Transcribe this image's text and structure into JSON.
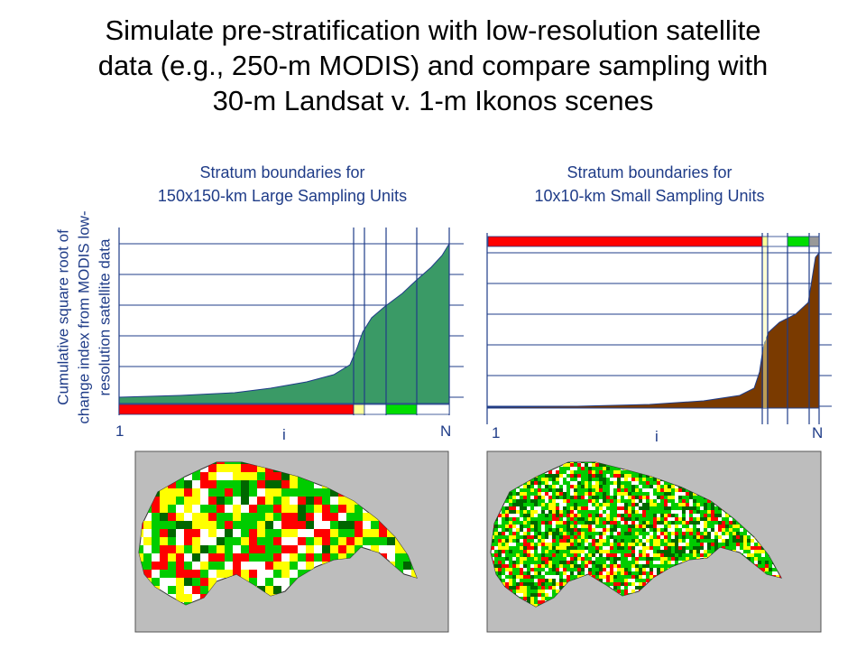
{
  "title_lines": [
    "Simulate pre-stratification with low-resolution satellite",
    "data (e.g., 250-m MODIS) and compare sampling with",
    "30-m Landsat  v. 1-m Ikonos scenes"
  ],
  "y_axis_label_lines": [
    "Cumulative square root of",
    "change index from MODIS low-",
    "resolution satellite data"
  ],
  "left_panel": {
    "caption_lines": [
      "Stratum boundaries for",
      "150x150-km Large Sampling Units"
    ],
    "x_start": "1",
    "x_mid": "i",
    "x_end": "N",
    "curve_color": "#3a9a66",
    "strata_colors": [
      "#ff0000",
      "#ffff99",
      "#ffffff",
      "#00dd00",
      "#ffffff"
    ]
  },
  "right_panel": {
    "caption_lines": [
      "Stratum boundaries for",
      "10x10-km Small Sampling Units"
    ],
    "x_start": "1",
    "x_mid": "i",
    "x_end": "N",
    "curve_color": "#7a3a00",
    "strata_colors": [
      "#ff0000",
      "#ffff99",
      "#ffffff",
      "#00dd00",
      "#999999"
    ]
  },
  "map_colors": {
    "background": "#bdbdbd",
    "red": "#ff0000",
    "yellow": "#ffff00",
    "green": "#00cc00",
    "dark_green": "#006600",
    "white": "#ffffff"
  }
}
